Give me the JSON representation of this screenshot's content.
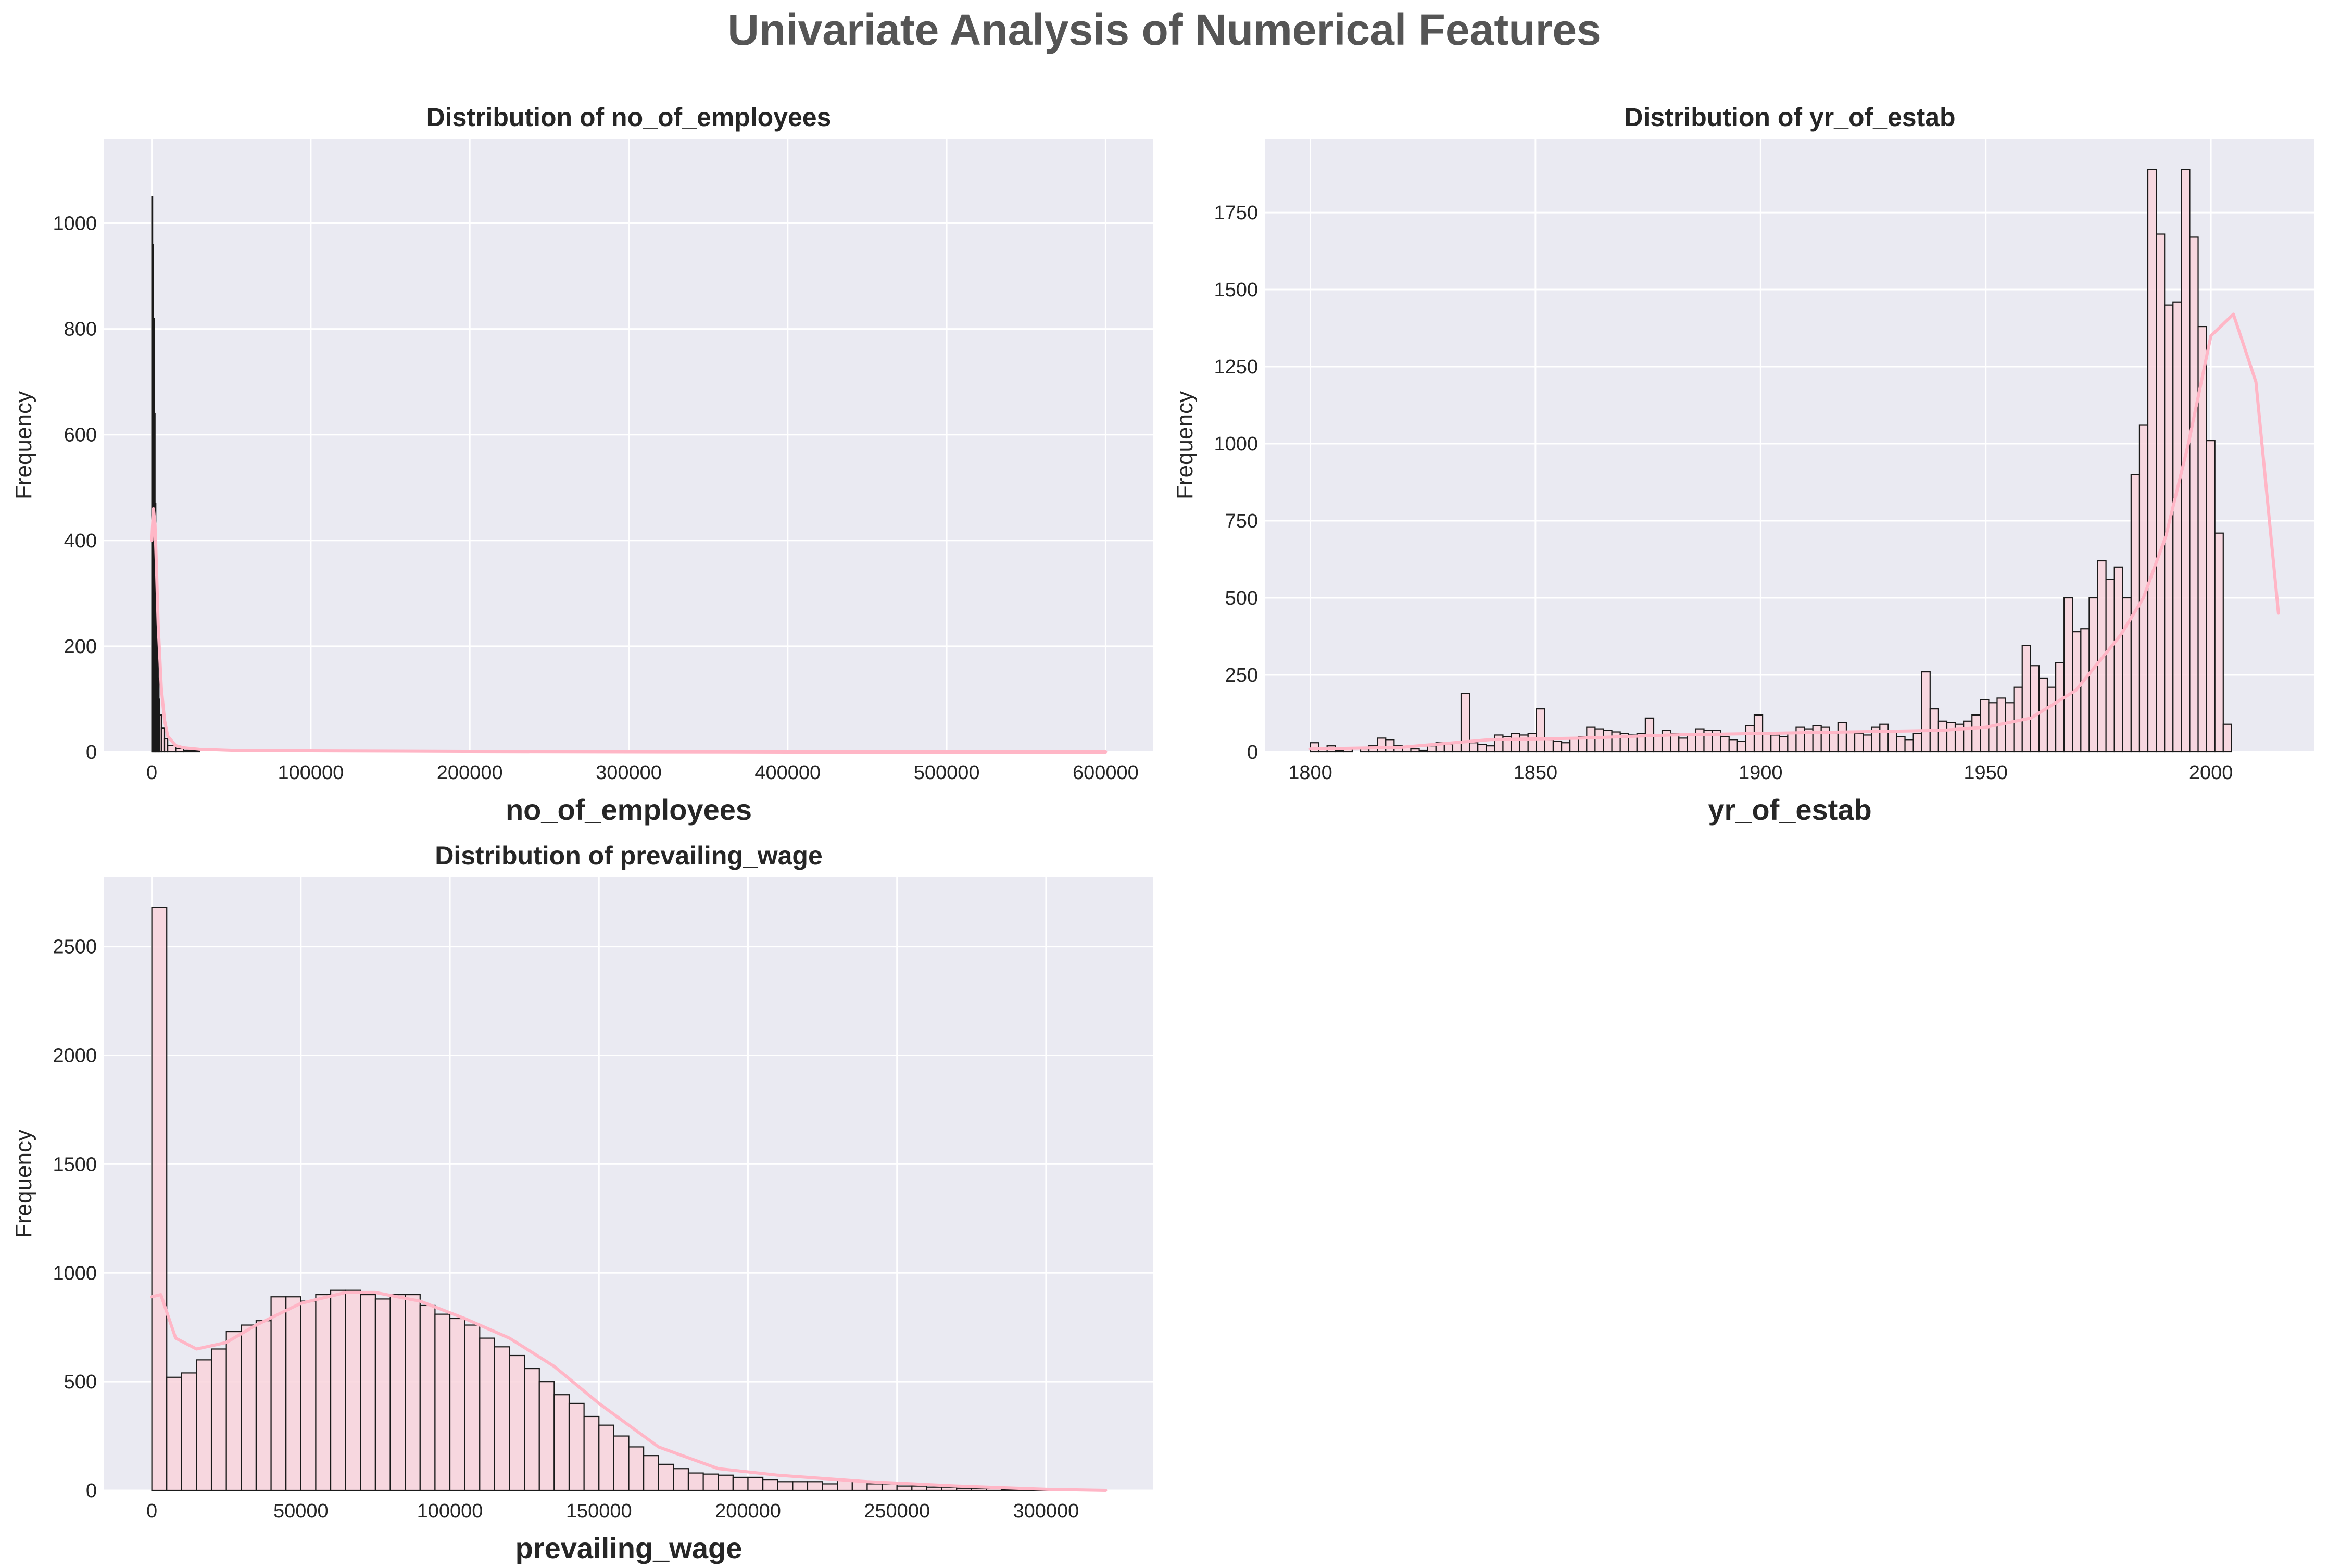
{
  "figure": {
    "title": "Univariate Analysis of Numerical Features",
    "colors": {
      "plot_bg": "#eaeaf2",
      "grid": "#ffffff",
      "bar_fill": "#f9d3dc",
      "bar_edge": "#1a1a1a",
      "kde": "#ffb6c6",
      "title": "#555555",
      "text": "#262626"
    }
  },
  "chart_data": [
    {
      "type": "bar",
      "title": "Distribution of no_of_employees",
      "xlabel": "no_of_employees",
      "ylabel": "Frequency",
      "xlim": [
        -30000,
        630000
      ],
      "ylim": [
        0,
        1160
      ],
      "xticks": [
        0,
        100000,
        200000,
        300000,
        400000,
        500000,
        600000
      ],
      "xtick_labels": [
        "0",
        "100000",
        "200000",
        "300000",
        "400000",
        "500000",
        "600000"
      ],
      "yticks": [
        0,
        200,
        400,
        600,
        800,
        1000
      ],
      "ytick_labels": [
        "0",
        "200",
        "400",
        "600",
        "800",
        "1000"
      ],
      "grid": true,
      "bin_edges": [
        0,
        500,
        1000,
        1500,
        2000,
        2500,
        3000,
        3500,
        4000,
        4500,
        5000,
        6000,
        8000,
        10000,
        15000,
        20000,
        30000
      ],
      "values": [
        1050,
        960,
        820,
        640,
        470,
        350,
        260,
        190,
        140,
        100,
        70,
        45,
        25,
        12,
        6,
        3
      ],
      "kde": {
        "x": [
          0,
          1000,
          2000,
          3000,
          4000,
          6000,
          8000,
          10000,
          15000,
          20000,
          30000,
          50000,
          100000,
          200000,
          400000,
          600000
        ],
        "y": [
          400,
          460,
          430,
          340,
          240,
          120,
          60,
          30,
          12,
          8,
          5,
          3,
          2,
          1,
          0,
          0
        ]
      }
    },
    {
      "type": "bar",
      "title": "Distribution of yr_of_estab",
      "xlabel": "yr_of_estab",
      "ylabel": "Frequency",
      "xlim": [
        1790,
        2023
      ],
      "ylim": [
        0,
        1990
      ],
      "xticks": [
        1800,
        1850,
        1900,
        1950,
        2000
      ],
      "xtick_labels": [
        "1800",
        "1850",
        "1900",
        "1950",
        "2000"
      ],
      "yticks": [
        0,
        250,
        500,
        750,
        1000,
        1250,
        1500,
        1750
      ],
      "ytick_labels": [
        "0",
        "250",
        "500",
        "750",
        "1000",
        "1250",
        "1500",
        "1750"
      ],
      "grid": true,
      "bin_start": 1800,
      "bin_width": 1.86,
      "values": [
        30,
        10,
        20,
        5,
        10,
        0,
        10,
        20,
        45,
        40,
        20,
        15,
        10,
        5,
        20,
        30,
        25,
        30,
        190,
        30,
        25,
        20,
        55,
        50,
        60,
        55,
        60,
        140,
        40,
        35,
        30,
        45,
        50,
        80,
        75,
        70,
        65,
        60,
        55,
        60,
        110,
        50,
        70,
        60,
        45,
        55,
        75,
        70,
        70,
        50,
        40,
        35,
        85,
        120,
        60,
        55,
        50,
        60,
        80,
        75,
        85,
        80,
        60,
        95,
        65,
        60,
        55,
        80,
        90,
        70,
        50,
        40,
        60,
        260,
        140,
        100,
        95,
        90,
        100,
        120,
        170,
        160,
        175,
        160,
        210,
        345,
        280,
        240,
        210,
        290,
        500,
        390,
        400,
        500,
        620,
        560,
        600,
        500,
        900,
        1060,
        1890,
        1680,
        1450,
        1460,
        1890,
        1670,
        1380,
        1010,
        710,
        90
      ],
      "kde": {
        "x": [
          1800,
          1820,
          1840,
          1860,
          1880,
          1900,
          1920,
          1940,
          1950,
          1960,
          1970,
          1980,
          1985,
          1990,
          1995,
          2000,
          2005,
          2010,
          2015
        ],
        "y": [
          10,
          15,
          40,
          45,
          55,
          60,
          65,
          70,
          80,
          110,
          200,
          380,
          500,
          700,
          1000,
          1350,
          1420,
          1200,
          450
        ]
      }
    },
    {
      "type": "bar",
      "title": "Distribution of prevailing_wage",
      "xlabel": "prevailing_wage",
      "ylabel": "Frequency",
      "xlim": [
        -16000,
        336000
      ],
      "ylim": [
        0,
        2820
      ],
      "xticks": [
        0,
        50000,
        100000,
        150000,
        200000,
        250000,
        300000
      ],
      "xtick_labels": [
        "0",
        "50000",
        "100000",
        "150000",
        "200000",
        "250000",
        "300000"
      ],
      "yticks": [
        0,
        500,
        1000,
        1500,
        2000,
        2500
      ],
      "ytick_labels": [
        "0",
        "500",
        "1000",
        "1500",
        "2000",
        "2500"
      ],
      "grid": true,
      "bin_start": 0,
      "bin_width": 5000,
      "values": [
        2680,
        520,
        540,
        600,
        650,
        730,
        760,
        780,
        890,
        890,
        870,
        900,
        920,
        920,
        900,
        880,
        900,
        900,
        850,
        810,
        790,
        760,
        700,
        660,
        620,
        560,
        500,
        440,
        400,
        340,
        300,
        250,
        200,
        160,
        120,
        100,
        80,
        75,
        70,
        60,
        60,
        50,
        40,
        40,
        40,
        30,
        50,
        40,
        30,
        30,
        20,
        20,
        15,
        15,
        10,
        10,
        10,
        5,
        5,
        5,
        5,
        5,
        3,
        3
      ],
      "kde": {
        "x": [
          0,
          3000,
          8000,
          15000,
          25000,
          35000,
          50000,
          65000,
          75000,
          90000,
          105000,
          120000,
          135000,
          150000,
          170000,
          190000,
          210000,
          240000,
          270000,
          300000,
          320000
        ],
        "y": [
          890,
          900,
          700,
          650,
          680,
          760,
          860,
          910,
          910,
          870,
          790,
          700,
          570,
          400,
          200,
          100,
          70,
          40,
          20,
          5,
          0
        ]
      }
    }
  ]
}
